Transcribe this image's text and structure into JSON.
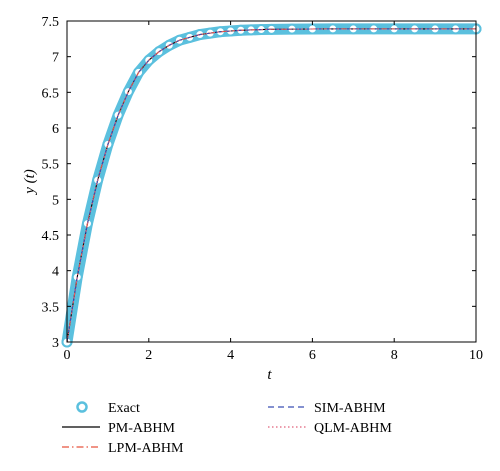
{
  "chart_data": {
    "type": "line",
    "xlabel": "t",
    "ylabel": "y (t)",
    "xlim": [
      0,
      10
    ],
    "ylim": [
      3,
      7.5
    ],
    "x_ticks": [
      0,
      2,
      4,
      6,
      8,
      10
    ],
    "y_ticks": [
      3,
      3.5,
      4,
      4.5,
      5,
      5.5,
      6,
      6.5,
      7,
      7.5
    ],
    "grid": false,
    "legend_position": "bottom",
    "x": [
      0,
      0.25,
      0.5,
      0.75,
      1,
      1.25,
      1.5,
      1.75,
      2,
      2.25,
      2.5,
      2.75,
      3,
      3.25,
      3.5,
      3.75,
      4,
      4.25,
      4.5,
      4.75,
      5,
      5.5,
      6,
      6.5,
      7,
      7.5,
      8,
      8.5,
      9,
      9.5,
      10
    ],
    "series": [
      {
        "name": "Exact",
        "style": "circle-markers",
        "color": "#5bc0de",
        "values": [
          3.0,
          3.91,
          4.66,
          5.27,
          5.77,
          6.18,
          6.51,
          6.78,
          6.95,
          7.07,
          7.16,
          7.23,
          7.27,
          7.31,
          7.33,
          7.35,
          7.36,
          7.37,
          7.375,
          7.38,
          7.383,
          7.386,
          7.388,
          7.389,
          7.389,
          7.389,
          7.389,
          7.389,
          7.389,
          7.389,
          7.389
        ]
      },
      {
        "name": "PM-ABHM",
        "style": "solid",
        "color": "#000000",
        "values": [
          3.0,
          3.91,
          4.66,
          5.27,
          5.77,
          6.18,
          6.51,
          6.78,
          6.95,
          7.07,
          7.16,
          7.23,
          7.27,
          7.31,
          7.33,
          7.35,
          7.36,
          7.37,
          7.375,
          7.38,
          7.383,
          7.386,
          7.388,
          7.389,
          7.389,
          7.389,
          7.389,
          7.389,
          7.389,
          7.389,
          7.389
        ]
      },
      {
        "name": "LPM-ABHM",
        "style": "dash-dot",
        "color": "#e8553f",
        "values": [
          3.0,
          3.91,
          4.66,
          5.27,
          5.77,
          6.18,
          6.51,
          6.78,
          6.95,
          7.07,
          7.16,
          7.23,
          7.27,
          7.31,
          7.33,
          7.35,
          7.36,
          7.37,
          7.375,
          7.38,
          7.383,
          7.386,
          7.388,
          7.389,
          7.389,
          7.389,
          7.389,
          7.389,
          7.389,
          7.389,
          7.389
        ]
      },
      {
        "name": "SIM-ABHM",
        "style": "dashed",
        "color": "#3a4fb5",
        "values": [
          3.0,
          3.91,
          4.66,
          5.27,
          5.77,
          6.18,
          6.51,
          6.78,
          6.95,
          7.07,
          7.16,
          7.23,
          7.27,
          7.31,
          7.33,
          7.35,
          7.36,
          7.37,
          7.375,
          7.38,
          7.383,
          7.386,
          7.388,
          7.389,
          7.389,
          7.389,
          7.389,
          7.389,
          7.389,
          7.389,
          7.389
        ]
      },
      {
        "name": "QLM-ABHM",
        "style": "dotted",
        "color": "#e0607a",
        "values": [
          3.0,
          3.91,
          4.66,
          5.27,
          5.77,
          6.18,
          6.51,
          6.78,
          6.95,
          7.07,
          7.16,
          7.23,
          7.27,
          7.31,
          7.33,
          7.35,
          7.36,
          7.37,
          7.375,
          7.38,
          7.383,
          7.386,
          7.388,
          7.389,
          7.389,
          7.389,
          7.389,
          7.389,
          7.389,
          7.389,
          7.389
        ]
      }
    ]
  }
}
